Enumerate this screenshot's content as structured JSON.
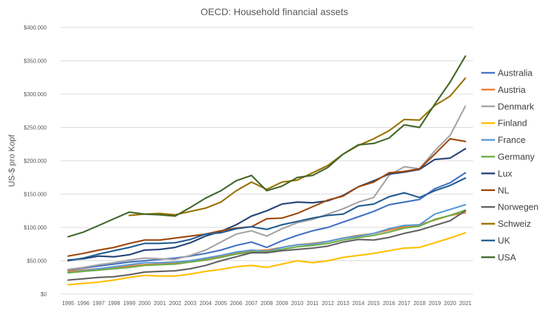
{
  "chart_data": {
    "type": "line",
    "title": "OECD: Household financial assets",
    "xlabel": "",
    "ylabel": "US-$ pro Kopf",
    "ylim": [
      0,
      400000
    ],
    "y_ticks": [
      "$0",
      "$50.000",
      "$100.000",
      "$150.000",
      "$200.000",
      "$250.000",
      "$300.000",
      "$350.000",
      "$400.000"
    ],
    "grid": "horizontal",
    "legend_position": "right",
    "x": [
      "1995",
      "1996",
      "1997",
      "1998",
      "1999",
      "2000",
      "2001",
      "2002",
      "2003",
      "2004",
      "2005",
      "2006",
      "2007",
      "2008",
      "2009",
      "2010",
      "2011",
      "2012",
      "2013",
      "2014",
      "2015",
      "2016",
      "2017",
      "2018",
      "2019",
      "2020",
      "2021"
    ],
    "series": [
      {
        "name": "Australia",
        "color": "#4472c4",
        "values": [
          36000,
          39000,
          42000,
          45000,
          48000,
          50000,
          52000,
          54000,
          57000,
          61000,
          66000,
          73000,
          78000,
          70000,
          80000,
          88000,
          95000,
          100000,
          108000,
          116000,
          124000,
          134000,
          138000,
          142000,
          158000,
          167000,
          182000
        ]
      },
      {
        "name": "Austria",
        "color": "#ed7d31",
        "values": [
          34000,
          36000,
          38000,
          40000,
          42000,
          44000,
          45000,
          47000,
          50000,
          53000,
          57000,
          62000,
          65000,
          66000,
          70000,
          74000,
          76000,
          79000,
          84000,
          88000,
          91000,
          96000,
          101000,
          104000,
          111000,
          118000,
          122000
        ]
      },
      {
        "name": "Denmark",
        "color": "#a5a5a5",
        "values": [
          37000,
          40000,
          44000,
          47000,
          51000,
          54000,
          53000,
          52000,
          58000,
          66000,
          78000,
          90000,
          95000,
          87000,
          98000,
          107000,
          112000,
          120000,
          128000,
          138000,
          145000,
          178000,
          191000,
          188000,
          215000,
          238000,
          282000
        ]
      },
      {
        "name": "Finland",
        "color": "#ffc000",
        "values": [
          14000,
          16000,
          18000,
          21000,
          25000,
          28000,
          27000,
          27000,
          30000,
          34000,
          37000,
          41000,
          43000,
          40000,
          45000,
          50000,
          47000,
          50000,
          55000,
          58000,
          61000,
          65000,
          69000,
          70000,
          77000,
          84000,
          92000
        ]
      },
      {
        "name": "France",
        "color": "#5b9bd5",
        "values": [
          32000,
          35000,
          38000,
          41000,
          44000,
          47000,
          47000,
          48000,
          50000,
          54000,
          58000,
          63000,
          66000,
          64000,
          70000,
          74000,
          75000,
          79000,
          84000,
          87000,
          91000,
          98000,
          103000,
          104000,
          120000,
          127000,
          134000
        ]
      },
      {
        "name": "Germany",
        "color": "#70ad47",
        "values": [
          32000,
          34000,
          36000,
          38000,
          40000,
          43000,
          44000,
          45000,
          48000,
          51000,
          55000,
          60000,
          63000,
          63000,
          67000,
          71000,
          73000,
          76000,
          81000,
          85000,
          88000,
          93000,
          99000,
          102000,
          112000,
          118000,
          126000
        ]
      },
      {
        "name": "Lux",
        "color": "#264478",
        "values": [
          51000,
          53000,
          57000,
          56000,
          59000,
          66000,
          67000,
          70000,
          77000,
          87000,
          94000,
          104000,
          117000,
          125000,
          135000,
          138000,
          137000,
          140000,
          148000,
          161000,
          170000,
          180000,
          183000,
          187000,
          202000,
          204000,
          218000
        ]
      },
      {
        "name": "NL",
        "color": "#9e480e",
        "values": [
          57000,
          61000,
          66000,
          70000,
          76000,
          81000,
          81000,
          84000,
          87000,
          90000,
          95000,
          99000,
          101000,
          113000,
          114000,
          121000,
          131000,
          141000,
          147000,
          161000,
          168000,
          182000,
          184000,
          188000,
          210000,
          233000,
          229000
        ]
      },
      {
        "name": "Norwegen",
        "color": "#636363",
        "values": [
          21000,
          23000,
          25000,
          26000,
          29000,
          33000,
          34000,
          35000,
          38000,
          43000,
          50000,
          56000,
          62000,
          62000,
          65000,
          67000,
          69000,
          72000,
          78000,
          82000,
          81000,
          85000,
          91000,
          96000,
          103000,
          110000,
          125000
        ]
      },
      {
        "name": "Schweiz",
        "color": "#997300",
        "values": [
          null,
          null,
          null,
          null,
          118000,
          120000,
          121000,
          119000,
          124000,
          129000,
          138000,
          155000,
          168000,
          157000,
          168000,
          171000,
          182000,
          193000,
          210000,
          223000,
          233000,
          245000,
          262000,
          261000,
          283000,
          297000,
          324000
        ]
      },
      {
        "name": "UK",
        "color": "#255e91",
        "values": [
          50000,
          54000,
          60000,
          65000,
          70000,
          76000,
          76000,
          77000,
          82000,
          90000,
          92000,
          98000,
          101000,
          97000,
          104000,
          109000,
          114000,
          118000,
          120000,
          132000,
          135000,
          146000,
          152000,
          145000,
          155000,
          163000,
          174000
        ]
      },
      {
        "name": "USA",
        "color": "#43682b",
        "values": [
          86000,
          93000,
          103000,
          113000,
          123000,
          120000,
          119000,
          117000,
          130000,
          144000,
          155000,
          170000,
          178000,
          155000,
          162000,
          175000,
          178000,
          190000,
          210000,
          224000,
          226000,
          234000,
          254000,
          250000,
          285000,
          318000,
          357000
        ]
      }
    ]
  }
}
